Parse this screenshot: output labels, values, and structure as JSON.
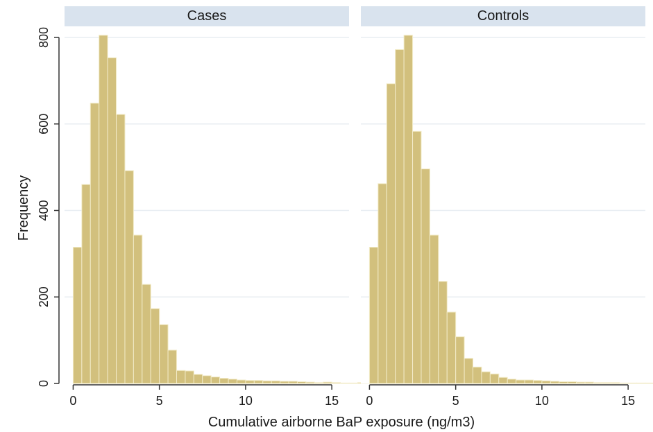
{
  "chart_data": {
    "type": "bar",
    "ylabel": "Frequency",
    "xlabel": "Cumulative airborne BaP exposure (ng/m3)",
    "xlim": [
      -0.5,
      16
    ],
    "ylim": [
      0,
      825
    ],
    "x_ticks": [
      0,
      5,
      10,
      15
    ],
    "y_ticks": [
      0,
      200,
      400,
      600,
      800
    ],
    "bin_width": 0.5,
    "grid": true,
    "bar_color": "#d2c07d",
    "bar_edge_color": "#f2ebc8",
    "strip_color": "#d9e3ee",
    "panel_bg": "#ffffff",
    "gridline_color": "#e8edf2",
    "panels": [
      {
        "title": "Cases",
        "bins_start": 0,
        "values": [
          315,
          460,
          648,
          805,
          753,
          622,
          492,
          343,
          229,
          173,
          136,
          77,
          30,
          29,
          21,
          18,
          15,
          12,
          10,
          8,
          7,
          7,
          6,
          6,
          5,
          5,
          4,
          3,
          2,
          3,
          2,
          1,
          1,
          2,
          1,
          1,
          0,
          1,
          0,
          0
        ]
      },
      {
        "title": "Controls",
        "bins_start": 0,
        "values": [
          315,
          462,
          693,
          772,
          805,
          583,
          496,
          343,
          236,
          165,
          108,
          58,
          38,
          27,
          22,
          14,
          10,
          8,
          8,
          7,
          6,
          5,
          4,
          4,
          3,
          3,
          2,
          2,
          2,
          1,
          1,
          1,
          1,
          1,
          3,
          2,
          1,
          0,
          1,
          1
        ]
      }
    ]
  }
}
